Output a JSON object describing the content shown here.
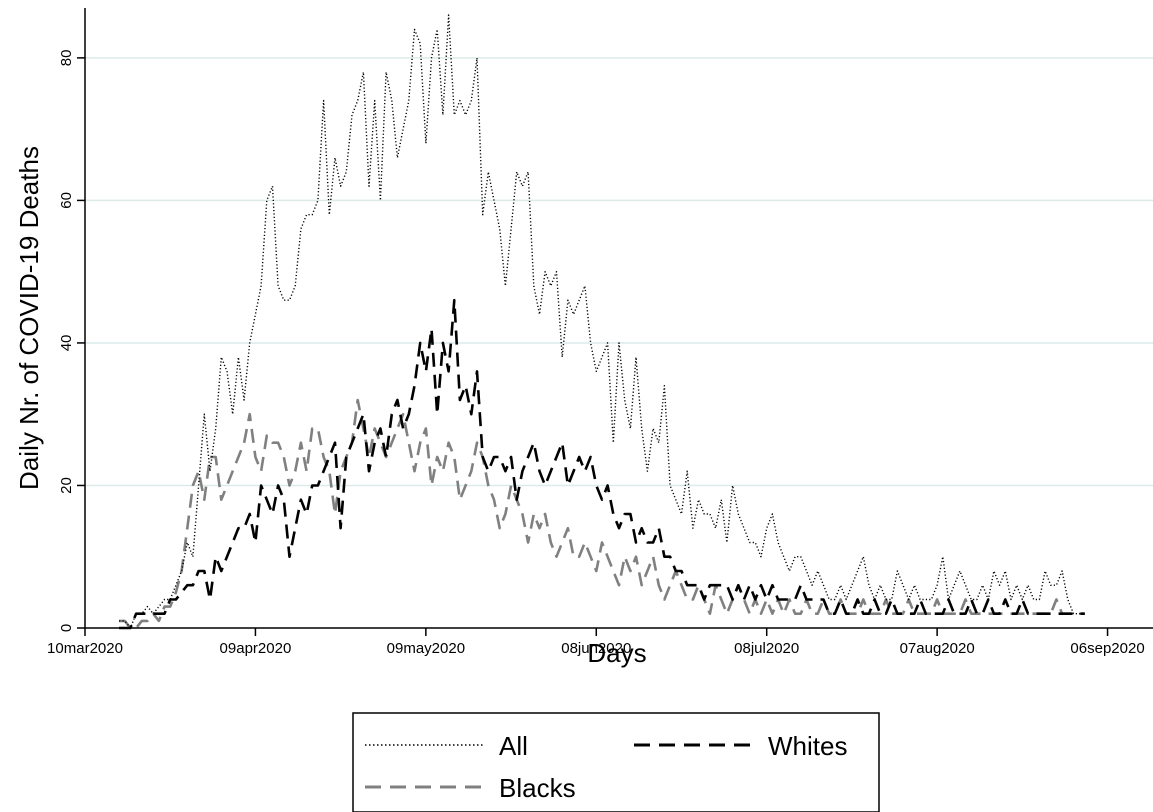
{
  "chart_data": {
    "type": "line",
    "title": "",
    "xlabel": "Days",
    "ylabel": "Daily Nr. of COVID-19 Deaths",
    "xlim": [
      "2020-03-10",
      "2020-09-14"
    ],
    "ylim": [
      0,
      87
    ],
    "x_ticks": [
      "10mar2020",
      "09apr2020",
      "09may2020",
      "08jun2020",
      "08jul2020",
      "07aug2020",
      "06sep2020"
    ],
    "y_ticks": [
      0,
      20,
      40,
      60,
      80
    ],
    "grid": "horizontal",
    "legend_position": "bottom-center",
    "x_start": "2020-03-16",
    "series": [
      {
        "name": "All",
        "style": "dotted",
        "color": "#000000",
        "values": [
          1,
          1,
          0,
          2,
          2,
          3,
          2,
          3,
          4,
          4,
          6,
          8,
          12,
          10,
          20,
          30,
          22,
          28,
          38,
          36,
          30,
          38,
          32,
          40,
          44,
          48,
          60,
          62,
          48,
          46,
          46,
          48,
          56,
          58,
          58,
          60,
          74,
          58,
          66,
          62,
          64,
          72,
          74,
          78,
          62,
          74,
          60,
          78,
          74,
          66,
          70,
          74,
          84,
          82,
          68,
          80,
          84,
          72,
          86,
          72,
          74,
          72,
          74,
          80,
          58,
          64,
          60,
          56,
          48,
          56,
          64,
          62,
          64,
          48,
          44,
          50,
          48,
          50,
          38,
          46,
          44,
          46,
          48,
          40,
          36,
          38,
          40,
          26,
          40,
          32,
          28,
          38,
          28,
          22,
          28,
          26,
          34,
          20,
          18,
          16,
          22,
          14,
          18,
          16,
          16,
          14,
          18,
          12,
          20,
          16,
          14,
          12,
          12,
          10,
          14,
          16,
          12,
          10,
          8,
          10,
          10,
          8,
          6,
          8,
          6,
          4,
          4,
          6,
          4,
          6,
          8,
          10,
          6,
          4,
          6,
          4,
          4,
          8,
          6,
          4,
          6,
          4,
          4,
          4,
          6,
          10,
          4,
          6,
          8,
          6,
          4,
          4,
          6,
          4,
          8,
          6,
          8,
          4,
          6,
          4,
          6,
          4,
          4,
          8,
          6,
          6,
          8,
          4,
          2,
          2,
          2
        ]
      },
      {
        "name": "Blacks",
        "style": "dashed",
        "color": "#808080",
        "values": [
          1,
          1,
          0,
          0,
          1,
          1,
          2,
          1,
          3,
          3,
          5,
          8,
          14,
          20,
          22,
          18,
          24,
          24,
          18,
          20,
          22,
          24,
          26,
          30,
          24,
          22,
          27,
          26,
          26,
          24,
          20,
          22,
          26,
          22,
          28,
          28,
          24,
          22,
          16,
          22,
          24,
          26,
          32,
          28,
          24,
          28,
          26,
          24,
          26,
          28,
          30,
          26,
          22,
          26,
          28,
          20,
          24,
          22,
          26,
          24,
          18,
          20,
          22,
          26,
          24,
          20,
          18,
          14,
          16,
          20,
          18,
          16,
          12,
          16,
          14,
          16,
          12,
          10,
          12,
          14,
          10,
          10,
          12,
          10,
          8,
          12,
          10,
          8,
          6,
          10,
          8,
          10,
          6,
          8,
          10,
          6,
          4,
          6,
          8,
          6,
          4,
          4,
          6,
          4,
          2,
          6,
          4,
          2,
          4,
          6,
          4,
          2,
          4,
          2,
          4,
          2,
          4,
          2,
          4,
          2,
          2,
          4,
          2,
          2,
          4,
          2,
          2,
          4,
          2,
          2,
          2,
          4,
          2,
          2,
          2,
          4,
          2,
          2,
          2,
          4,
          2,
          2,
          2,
          2,
          4,
          2,
          2,
          2,
          2,
          4,
          2,
          2,
          2,
          2,
          2,
          2,
          2,
          2,
          2,
          2,
          2,
          2,
          2,
          2,
          2,
          4,
          2,
          2,
          2,
          2,
          2
        ]
      },
      {
        "name": "Whites",
        "style": "dashed",
        "color": "#000000",
        "values": [
          0,
          0,
          0,
          2,
          2,
          2,
          2,
          2,
          2,
          4,
          4,
          5,
          6,
          6,
          8,
          8,
          4,
          10,
          8,
          10,
          12,
          14,
          14,
          16,
          12,
          20,
          18,
          16,
          20,
          18,
          10,
          14,
          18,
          16,
          20,
          20,
          22,
          24,
          26,
          14,
          24,
          26,
          28,
          30,
          22,
          26,
          28,
          24,
          30,
          32,
          28,
          30,
          34,
          40,
          36,
          42,
          30,
          40,
          36,
          46,
          32,
          34,
          30,
          36,
          24,
          22,
          24,
          24,
          22,
          24,
          18,
          22,
          24,
          26,
          22,
          20,
          22,
          24,
          26,
          20,
          22,
          24,
          22,
          24,
          20,
          18,
          20,
          16,
          14,
          16,
          16,
          12,
          14,
          12,
          12,
          14,
          10,
          10,
          8,
          8,
          6,
          6,
          6,
          4,
          6,
          6,
          6,
          6,
          4,
          6,
          4,
          6,
          4,
          6,
          4,
          6,
          4,
          4,
          4,
          4,
          6,
          4,
          4,
          4,
          4,
          2,
          2,
          4,
          2,
          2,
          4,
          2,
          2,
          4,
          2,
          2,
          4,
          2,
          2,
          2,
          2,
          4,
          2,
          2,
          2,
          2,
          4,
          2,
          2,
          2,
          4,
          2,
          2,
          4,
          2,
          2,
          4,
          2,
          2,
          4,
          2,
          2,
          2,
          2,
          2,
          2,
          2,
          2,
          2,
          2,
          2
        ]
      }
    ]
  }
}
